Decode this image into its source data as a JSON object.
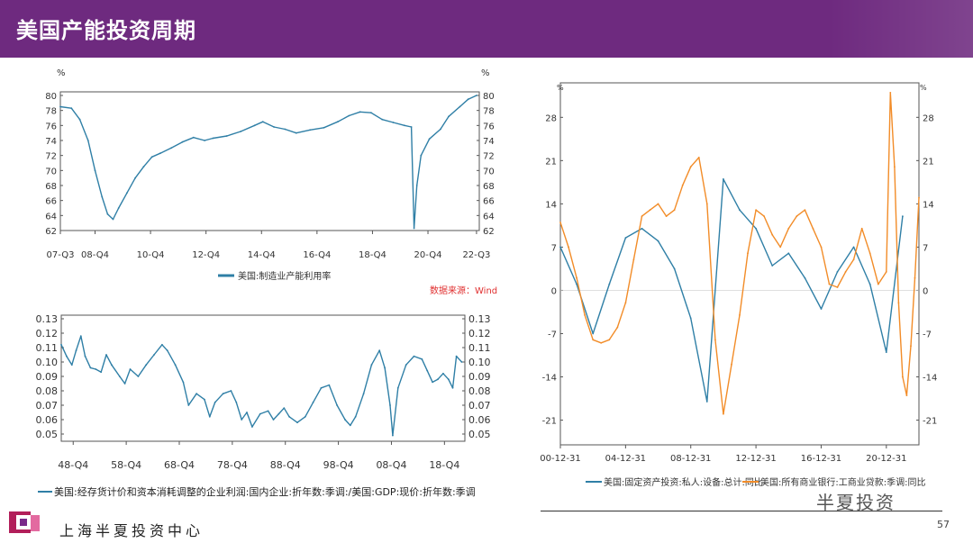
{
  "header": {
    "title": "美国产能投资周期"
  },
  "footer": {
    "org": "上海半夏投资中心",
    "brand": "半夏投资",
    "page": "57"
  },
  "colors": {
    "header_bg": "#6e2a7f",
    "blue": "#2f7fa6",
    "orange": "#f28c28",
    "source_red": "#e03030"
  },
  "charts": {
    "cap": {
      "legend": "美国:制造业产能利用率",
      "source": "数据来源：Wind",
      "unit_left": "%",
      "unit_right": "%"
    },
    "inv": {
      "legend": "美国:经存货计价和资本消耗调整的企业利润:国内企业:折年数:季调:/美国:GDP:现价:折年数:季调"
    },
    "capex": {
      "unit_left": "%",
      "unit_right": "%",
      "legend_a": "美国:固定资产投资:私人:设备:总计:同比",
      "legend_b": "美国:所有商业银行:工商业贷款:季调:同比"
    }
  },
  "chart_data": [
    {
      "id": "cap",
      "type": "line",
      "ylim": [
        62,
        80
      ],
      "yticks": [
        "62",
        "64",
        "66",
        "68",
        "70",
        "72",
        "74",
        "76",
        "78",
        "80"
      ],
      "xlim": [
        2007.5,
        2022.6
      ],
      "xticks": [
        {
          "x": 2007.5,
          "label": "07-Q3"
        },
        {
          "x": 2008.75,
          "label": "08-Q4"
        },
        {
          "x": 2010.75,
          "label": "10-Q4"
        },
        {
          "x": 2012.75,
          "label": "12-Q4"
        },
        {
          "x": 2014.75,
          "label": "14-Q4"
        },
        {
          "x": 2016.75,
          "label": "16-Q4"
        },
        {
          "x": 2018.75,
          "label": "18-Q4"
        },
        {
          "x": 2020.75,
          "label": "20-Q4"
        },
        {
          "x": 2022.5,
          "label": "22-Q3"
        }
      ],
      "series": [
        {
          "name": "美国:制造业产能利用率",
          "x": [
            2007.5,
            2007.9,
            2008.2,
            2008.5,
            2008.75,
            2009.0,
            2009.2,
            2009.4,
            2009.6,
            2009.9,
            2010.2,
            2010.5,
            2010.8,
            2011.1,
            2011.5,
            2011.9,
            2012.3,
            2012.7,
            2013.0,
            2013.5,
            2014.0,
            2014.5,
            2014.8,
            2015.2,
            2015.6,
            2016.0,
            2016.5,
            2017.0,
            2017.5,
            2017.9,
            2018.3,
            2018.7,
            2019.1,
            2019.5,
            2019.9,
            2020.15,
            2020.25,
            2020.35,
            2020.5,
            2020.8,
            2021.2,
            2021.5,
            2021.9,
            2022.2,
            2022.5
          ],
          "values": [
            78.5,
            78.3,
            76.8,
            74.0,
            70.0,
            66.5,
            64.2,
            63.5,
            65.0,
            67.0,
            69.0,
            70.5,
            71.8,
            72.3,
            73.0,
            73.8,
            74.4,
            74.0,
            74.3,
            74.6,
            75.2,
            76.0,
            76.5,
            75.8,
            75.5,
            75.0,
            75.4,
            75.7,
            76.5,
            77.3,
            77.8,
            77.7,
            76.8,
            76.4,
            76.0,
            75.8,
            62.3,
            68.0,
            72.0,
            74.2,
            75.5,
            77.2,
            78.5,
            79.5,
            80.0
          ]
        }
      ]
    },
    {
      "id": "inv",
      "type": "line",
      "ylim": [
        0.045,
        0.13
      ],
      "yticks": [
        "0.05",
        "0.06",
        "0.07",
        "0.08",
        "0.09",
        "0.10",
        "0.11",
        "0.12",
        "0.13"
      ],
      "xlim": [
        1946.5,
        2022.6
      ],
      "xticks": [
        {
          "x": 1948.75,
          "label": "48-Q4"
        },
        {
          "x": 1958.75,
          "label": "58-Q4"
        },
        {
          "x": 1968.75,
          "label": "68-Q4"
        },
        {
          "x": 1978.75,
          "label": "78-Q4"
        },
        {
          "x": 1988.75,
          "label": "88-Q4"
        },
        {
          "x": 1998.75,
          "label": "98-Q4"
        },
        {
          "x": 2008.75,
          "label": "08-Q4"
        },
        {
          "x": 2018.75,
          "label": "18-Q4"
        }
      ],
      "series": [
        {
          "name": "美国:经存货计价和资本消耗调整的企业利润:国内企业:折年数:季调:/美国:GDP:现价:折年数:季调",
          "x": [
            1946.5,
            1947.5,
            1948.5,
            1949.3,
            1950.2,
            1951.0,
            1952.0,
            1953.0,
            1954.0,
            1955.0,
            1956.0,
            1957.5,
            1958.5,
            1959.5,
            1961.0,
            1962.5,
            1964.0,
            1965.5,
            1966.5,
            1968.0,
            1969.5,
            1970.5,
            1972.0,
            1973.5,
            1974.5,
            1975.5,
            1977.0,
            1978.5,
            1979.5,
            1980.5,
            1981.5,
            1982.5,
            1984.0,
            1985.5,
            1986.5,
            1987.5,
            1988.5,
            1989.5,
            1991.0,
            1992.5,
            1994.0,
            1995.5,
            1997.0,
            1998.5,
            2000.0,
            2001.0,
            2002.0,
            2003.5,
            2005.0,
            2006.5,
            2007.5,
            2008.5,
            2009.0,
            2010.0,
            2011.5,
            2013.0,
            2014.5,
            2015.5,
            2016.5,
            2017.5,
            2018.5,
            2019.5,
            2020.3,
            2021.0,
            2022.0
          ],
          "values": [
            0.112,
            0.104,
            0.098,
            0.108,
            0.118,
            0.104,
            0.096,
            0.095,
            0.093,
            0.105,
            0.098,
            0.09,
            0.085,
            0.095,
            0.09,
            0.098,
            0.105,
            0.112,
            0.108,
            0.098,
            0.086,
            0.07,
            0.078,
            0.074,
            0.062,
            0.072,
            0.078,
            0.08,
            0.072,
            0.06,
            0.065,
            0.055,
            0.064,
            0.066,
            0.06,
            0.064,
            0.068,
            0.062,
            0.058,
            0.062,
            0.072,
            0.082,
            0.084,
            0.07,
            0.06,
            0.056,
            0.062,
            0.078,
            0.098,
            0.108,
            0.096,
            0.07,
            0.049,
            0.082,
            0.098,
            0.104,
            0.102,
            0.094,
            0.086,
            0.088,
            0.092,
            0.088,
            0.082,
            0.104,
            0.1
          ]
        }
      ]
    },
    {
      "id": "capex",
      "type": "line",
      "ylim": [
        -25,
        33
      ],
      "yticks": [
        "-21",
        "-14",
        "-7",
        "0",
        "7",
        "14",
        "21",
        "28"
      ],
      "xlim": [
        2000.0,
        2022.0
      ],
      "xticks": [
        {
          "x": 2000.0,
          "label": "00-12-31"
        },
        {
          "x": 2004.0,
          "label": "04-12-31"
        },
        {
          "x": 2008.0,
          "label": "08-12-31"
        },
        {
          "x": 2012.0,
          "label": "12-12-31"
        },
        {
          "x": 2016.0,
          "label": "16-12-31"
        },
        {
          "x": 2020.0,
          "label": "20-12-31"
        }
      ],
      "series": [
        {
          "name": "美国:固定资产投资:私人:设备:总计:同比",
          "x": [
            2000.0,
            2001.0,
            2002.0,
            2003.0,
            2004.0,
            2005.0,
            2006.0,
            2007.0,
            2008.0,
            2009.0,
            2010.0,
            2011.0,
            2012.0,
            2013.0,
            2014.0,
            2015.0,
            2016.0,
            2017.0,
            2018.0,
            2019.0,
            2020.0,
            2021.0
          ],
          "values": [
            7.0,
            1.0,
            -7.0,
            1.0,
            8.5,
            10.0,
            8.0,
            3.5,
            -4.5,
            -18.0,
            18.0,
            13.0,
            10.0,
            4.0,
            6.0,
            2.0,
            -3.0,
            3.0,
            7.0,
            1.0,
            -10.0,
            12.0
          ]
        },
        {
          "name": "美国:所有商业银行:工商业贷款:季调:同比",
          "x": [
            2000.0,
            2000.5,
            2001.0,
            2001.5,
            2002.0,
            2002.5,
            2003.0,
            2003.5,
            2004.0,
            2004.5,
            2005.0,
            2005.5,
            2006.0,
            2006.5,
            2007.0,
            2007.5,
            2008.0,
            2008.5,
            2009.0,
            2009.5,
            2010.0,
            2010.5,
            2011.0,
            2011.5,
            2012.0,
            2012.5,
            2013.0,
            2013.5,
            2014.0,
            2014.5,
            2015.0,
            2015.5,
            2016.0,
            2016.5,
            2017.0,
            2017.5,
            2018.0,
            2018.5,
            2019.0,
            2019.5,
            2020.0,
            2020.25,
            2020.5,
            2020.75,
            2021.0,
            2021.25,
            2021.5,
            2021.75,
            2022.0
          ],
          "values": [
            11.0,
            7.0,
            2.0,
            -4.0,
            -8.0,
            -8.5,
            -8.0,
            -6.0,
            -2.0,
            5.0,
            12.0,
            13.0,
            14.0,
            12.0,
            13.0,
            17.0,
            20.0,
            21.5,
            14.0,
            -8.0,
            -20.0,
            -12.0,
            -4.0,
            6.0,
            13.0,
            12.0,
            9.0,
            7.0,
            10.0,
            12.0,
            13.0,
            10.0,
            7.0,
            1.0,
            0.5,
            3.0,
            5.0,
            10.0,
            6.0,
            1.0,
            3.0,
            32.0,
            20.0,
            -2.0,
            -14.0,
            -17.0,
            -9.0,
            2.0,
            15.0
          ]
        }
      ]
    }
  ]
}
